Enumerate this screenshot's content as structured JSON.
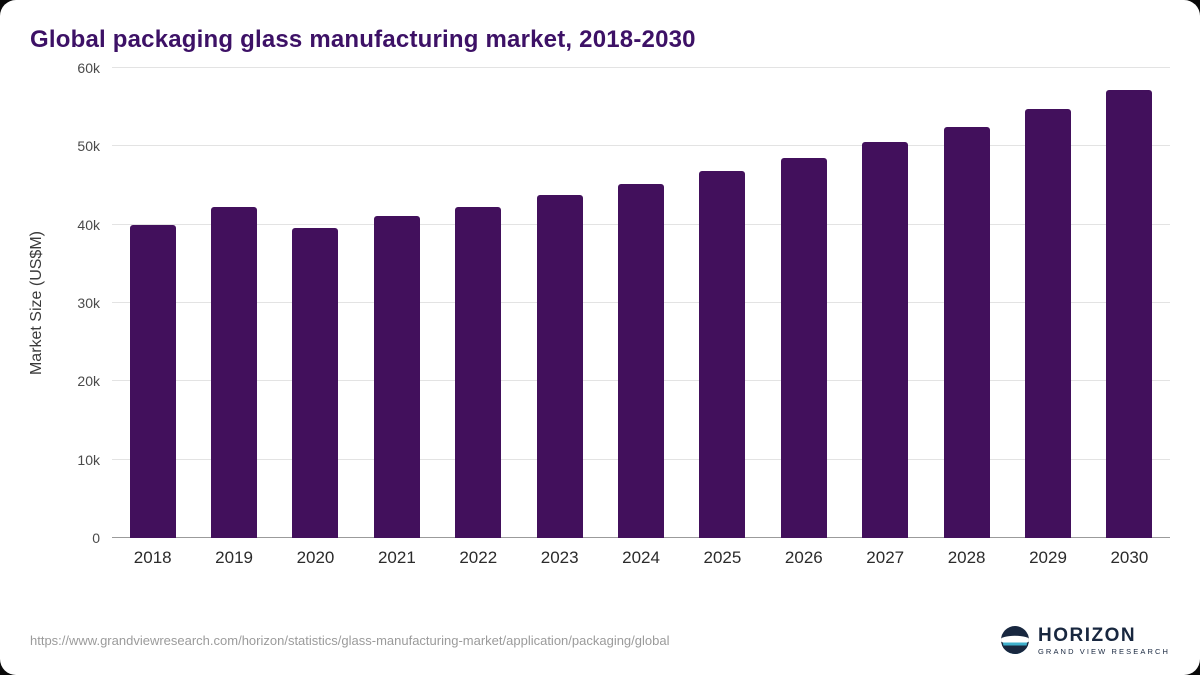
{
  "header": {
    "title": "Global packaging glass manufacturing market, 2018-2030"
  },
  "chart_data": {
    "type": "bar",
    "title": "Global packaging glass manufacturing market, 2018-2030",
    "categories": [
      "2018",
      "2019",
      "2020",
      "2021",
      "2022",
      "2023",
      "2024",
      "2025",
      "2026",
      "2027",
      "2028",
      "2029",
      "2030"
    ],
    "values": [
      39900,
      42200,
      39600,
      41100,
      42200,
      43800,
      45200,
      46900,
      48500,
      50600,
      52500,
      54800,
      57200
    ],
    "xlabel": "",
    "ylabel": "Market Size (US$M)",
    "ylim": [
      0,
      60000
    ],
    "ytick_values": [
      0,
      10000,
      20000,
      30000,
      40000,
      50000,
      60000
    ],
    "ytick_labels": [
      "0",
      "10k",
      "20k",
      "30k",
      "40k",
      "50k",
      "60k"
    ],
    "grid": true,
    "legend": "none",
    "bar_color": "#42105c"
  },
  "footer": {
    "source_url": "https://www.grandviewresearch.com/horizon/statistics/glass-manufacturing-market/application/packaging/global",
    "logo": {
      "name": "HORIZON",
      "tagline": "GRAND VIEW RESEARCH"
    }
  },
  "colors": {
    "bar": "#42105c",
    "title": "#3d1166",
    "logo_navy": "#18273f",
    "logo_teal": "#3fb0cc"
  }
}
